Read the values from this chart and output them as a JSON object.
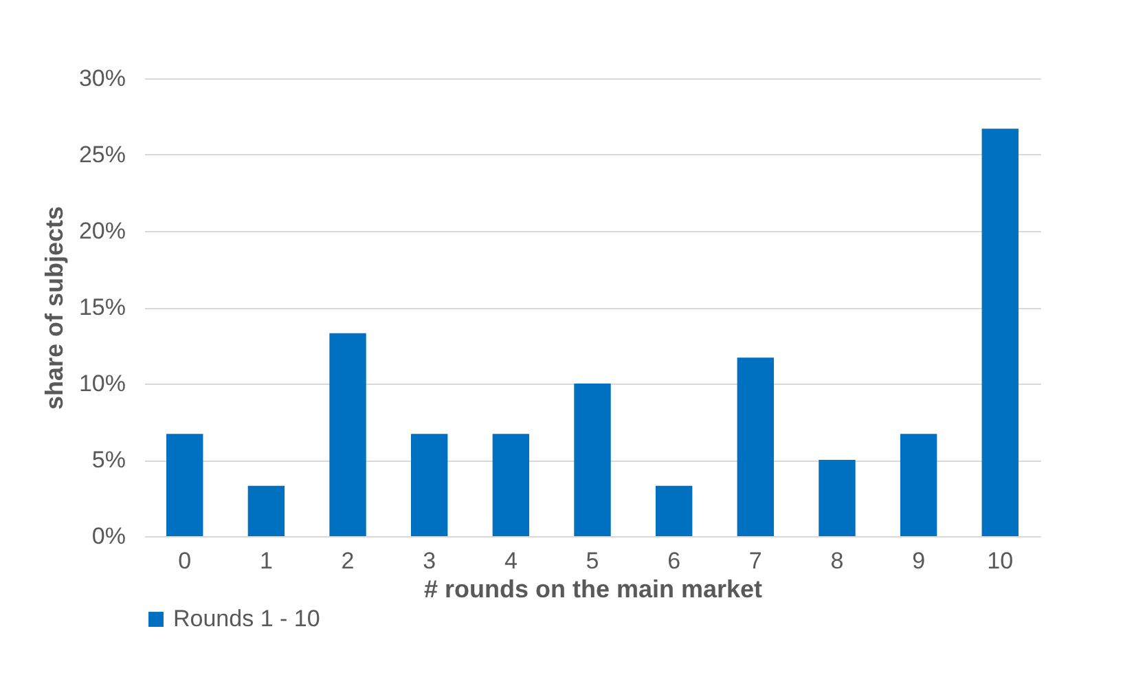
{
  "chart_data": {
    "type": "bar",
    "xlabel": "# rounds on the main market",
    "ylabel": "share of subjects",
    "categories": [
      "0",
      "1",
      "2",
      "3",
      "4",
      "5",
      "6",
      "7",
      "8",
      "9",
      "10"
    ],
    "series": [
      {
        "name": "Rounds 1 - 10",
        "color": "#0070c0",
        "values": [
          6.7,
          3.3,
          13.3,
          6.7,
          6.7,
          10,
          3.3,
          11.7,
          5,
          6.7,
          26.7
        ]
      }
    ],
    "ylim": [
      0,
      30
    ],
    "yticks": [
      {
        "value": 0,
        "label": "0%"
      },
      {
        "value": 5,
        "label": "5%"
      },
      {
        "value": 10,
        "label": "10%"
      },
      {
        "value": 15,
        "label": "15%"
      },
      {
        "value": 20,
        "label": "20%"
      },
      {
        "value": 25,
        "label": "25%"
      },
      {
        "value": 30,
        "label": "30%"
      }
    ],
    "grid": "y",
    "legend": "bottom"
  }
}
